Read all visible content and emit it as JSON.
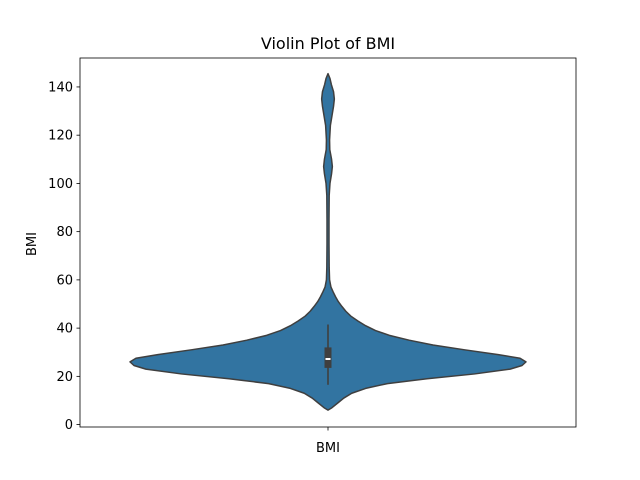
{
  "chart_data": {
    "type": "violin",
    "title": "Violin Plot of BMI",
    "xlabel": "",
    "ylabel": "BMI",
    "categories": [
      "BMI"
    ],
    "ylim": [
      -1,
      152
    ],
    "yticks": [
      0,
      20,
      40,
      60,
      80,
      100,
      120,
      140
    ],
    "grid": false,
    "legend": "none",
    "colors": {
      "body": "#3274a1",
      "edge": "#3f3f3f",
      "median": "#ffffff"
    },
    "series": [
      {
        "category": "BMI",
        "min": 6.0,
        "max": 145.5,
        "whisker_low": 16.5,
        "q1": 23.5,
        "median": 27.2,
        "q3": 32.0,
        "whisker_high": 41.5,
        "density": [
          [
            6.0,
            0.0
          ],
          [
            7.0,
            0.02
          ],
          [
            9.0,
            0.05
          ],
          [
            11.0,
            0.08
          ],
          [
            13.0,
            0.12
          ],
          [
            15.0,
            0.19
          ],
          [
            17.0,
            0.3
          ],
          [
            19.0,
            0.5
          ],
          [
            21.0,
            0.74
          ],
          [
            23.0,
            0.92
          ],
          [
            24.5,
            0.98
          ],
          [
            26.0,
            1.0
          ],
          [
            27.5,
            0.97
          ],
          [
            29.0,
            0.86
          ],
          [
            31.0,
            0.69
          ],
          [
            33.0,
            0.53
          ],
          [
            35.0,
            0.41
          ],
          [
            37.0,
            0.31
          ],
          [
            39.0,
            0.24
          ],
          [
            41.0,
            0.19
          ],
          [
            43.0,
            0.15
          ],
          [
            45.0,
            0.115
          ],
          [
            47.0,
            0.09
          ],
          [
            49.0,
            0.07
          ],
          [
            51.0,
            0.052
          ],
          [
            53.0,
            0.038
          ],
          [
            55.0,
            0.026
          ],
          [
            57.0,
            0.015
          ],
          [
            60.0,
            0.008
          ],
          [
            65.0,
            0.006
          ],
          [
            75.0,
            0.005
          ],
          [
            85.0,
            0.005
          ],
          [
            95.0,
            0.006
          ],
          [
            100.0,
            0.01
          ],
          [
            104.0,
            0.018
          ],
          [
            107.0,
            0.022
          ],
          [
            110.0,
            0.018
          ],
          [
            114.0,
            0.009
          ],
          [
            118.0,
            0.008
          ],
          [
            124.0,
            0.012
          ],
          [
            128.0,
            0.02
          ],
          [
            132.0,
            0.028
          ],
          [
            135.0,
            0.032
          ],
          [
            138.0,
            0.028
          ],
          [
            141.0,
            0.017
          ],
          [
            143.5,
            0.01
          ],
          [
            145.5,
            0.0
          ]
        ]
      }
    ]
  }
}
